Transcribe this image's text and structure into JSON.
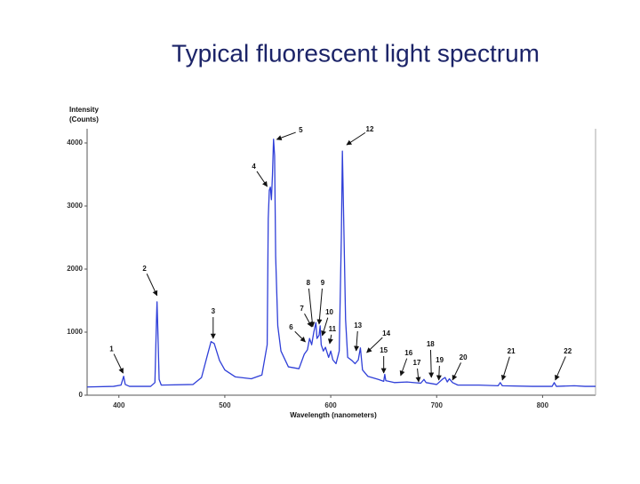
{
  "chart_data": {
    "type": "line",
    "title": "Typical fluorescent light spectrum",
    "ylabel": [
      "Intensity",
      "(Counts)"
    ],
    "xlabel": "Wavelength (nanometers)",
    "color": "#2f3fd8",
    "xlim": [
      370,
      850
    ],
    "ylim": [
      0,
      4225
    ],
    "xticks": [
      400,
      500,
      600,
      700,
      800
    ],
    "yticks": [
      0,
      1000,
      2000,
      3000,
      4000
    ],
    "x": [
      370,
      395,
      402,
      404.5,
      406,
      410,
      430,
      434,
      435.5,
      436,
      436.5,
      438,
      440,
      470,
      478,
      483,
      487,
      490,
      495,
      500,
      510,
      525,
      535,
      540,
      541,
      542,
      543,
      544,
      545,
      546,
      547,
      548,
      550,
      553,
      560,
      570,
      575,
      578,
      580,
      582,
      584,
      586,
      587,
      589,
      590,
      591,
      593,
      595,
      598,
      600,
      602,
      605,
      608,
      610,
      611,
      612,
      614,
      616,
      620,
      623,
      626,
      628,
      630,
      635,
      645,
      650,
      651,
      652,
      660,
      672,
      685,
      688,
      690,
      700,
      706,
      708,
      710,
      712,
      715,
      720,
      740,
      758,
      760,
      762,
      790,
      809,
      811,
      813,
      830,
      840,
      850
    ],
    "values": [
      130,
      140,
      160,
      300,
      170,
      140,
      140,
      200,
      1200,
      1480,
      1200,
      250,
      160,
      170,
      280,
      600,
      850,
      820,
      550,
      400,
      290,
      260,
      320,
      800,
      2800,
      3250,
      3300,
      3100,
      3500,
      4060,
      3800,
      2200,
      1100,
      700,
      450,
      420,
      650,
      720,
      900,
      800,
      1000,
      1150,
      900,
      950,
      1100,
      800,
      700,
      760,
      600,
      700,
      560,
      500,
      700,
      2500,
      3870,
      3000,
      1200,
      600,
      550,
      500,
      560,
      750,
      400,
      300,
      250,
      220,
      330,
      230,
      200,
      210,
      190,
      250,
      200,
      170,
      260,
      280,
      210,
      260,
      200,
      160,
      160,
      150,
      200,
      150,
      140,
      140,
      200,
      140,
      150,
      140,
      140
    ],
    "annotations": [
      {
        "text": "1",
        "x": 404,
        "y": 350
      },
      {
        "text": "2",
        "x": 436,
        "y": 1580
      },
      {
        "text": "3",
        "x": 489,
        "y": 900
      },
      {
        "text": "4",
        "x": 540,
        "y": 3310
      },
      {
        "text": "5",
        "x": 549,
        "y": 4056
      },
      {
        "text": "6",
        "x": 576,
        "y": 845
      },
      {
        "text": "7",
        "x": 582,
        "y": 1085
      },
      {
        "text": "8",
        "x": 583,
        "y": 1085
      },
      {
        "text": "9",
        "x": 589,
        "y": 1127
      },
      {
        "text": "10",
        "x": 592,
        "y": 944
      },
      {
        "text": "11",
        "x": 599,
        "y": 817
      },
      {
        "text": "12",
        "x": 615,
        "y": 3970
      },
      {
        "text": "13",
        "x": 624,
        "y": 704
      },
      {
        "text": "14",
        "x": 634,
        "y": 676
      },
      {
        "text": "15",
        "x": 650,
        "y": 352
      },
      {
        "text": "16",
        "x": 666,
        "y": 310
      },
      {
        "text": "17",
        "x": 683,
        "y": 211
      },
      {
        "text": "18",
        "x": 695,
        "y": 282
      },
      {
        "text": "19",
        "x": 702,
        "y": 240
      },
      {
        "text": "20",
        "x": 715,
        "y": 240
      },
      {
        "text": "21",
        "x": 762,
        "y": 240
      },
      {
        "text": "22",
        "x": 812,
        "y": 240
      }
    ]
  }
}
